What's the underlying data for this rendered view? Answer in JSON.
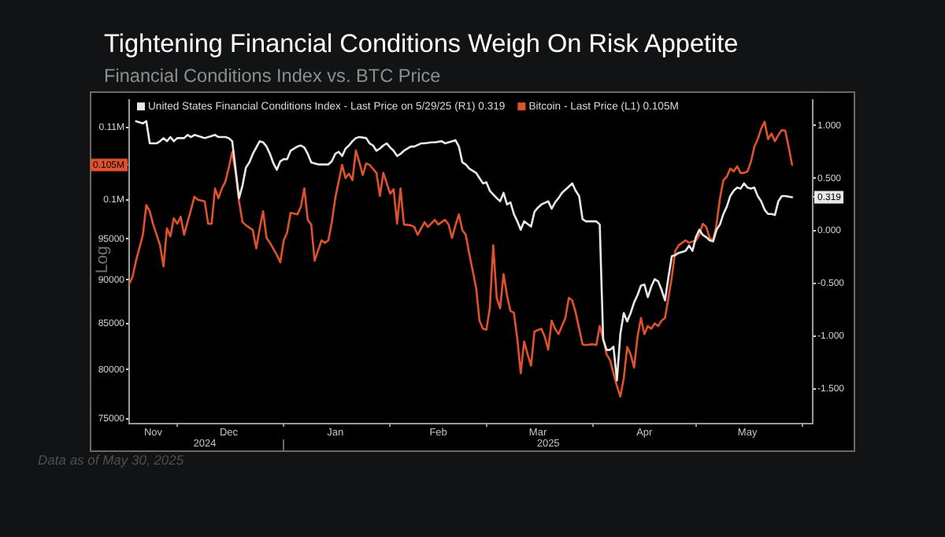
{
  "chart_data": {
    "type": "line",
    "title": "Tightening Financial Conditions Weigh On Risk Appetite",
    "subtitle": "Financial Conditions Index vs. BTC Price",
    "ylabel": "Log",
    "annotations": [
      "Data as of May 30, 2025"
    ],
    "xlim": [
      "2024-11-17",
      "2025-06-04"
    ],
    "xticks": [
      {
        "value": "2024-11-24",
        "label": "Nov"
      },
      {
        "value": "2024-12-01",
        "label": null
      },
      {
        "value": "2024-12-16",
        "label": "Dec"
      },
      {
        "value": "2025-01-01",
        "label": null
      },
      {
        "value": "2025-01-16",
        "label": "Jan"
      },
      {
        "value": "2025-02-01",
        "label": null
      },
      {
        "value": "2025-02-15",
        "label": "Feb"
      },
      {
        "value": "2025-03-01",
        "label": null
      },
      {
        "value": "2025-03-16",
        "label": "Mar"
      },
      {
        "value": "2025-04-01",
        "label": null
      },
      {
        "value": "2025-04-16",
        "label": "Apr"
      },
      {
        "value": "2025-05-01",
        "label": null
      },
      {
        "value": "2025-05-16",
        "label": "May"
      },
      {
        "value": "2025-06-01",
        "label": null
      }
    ],
    "x2lim": [
      "2024-11-17",
      "2025-06-04"
    ],
    "x2ticks": [
      {
        "value": "2024-12-09",
        "label": "2024"
      },
      {
        "value": "2025-01-01",
        "label": null
      },
      {
        "value": "2025-03-19",
        "label": "2025"
      }
    ],
    "ylim": [
      74500,
      114000
    ],
    "yticks": [
      {
        "value": 110000,
        "label": "0.11M"
      },
      {
        "value": 104700,
        "label": "0.105M"
      },
      {
        "value": 100000,
        "label": "0.1M"
      },
      95000,
      90000,
      85000,
      80000,
      75000
    ],
    "y2lim": [
      -1.83,
      1.24
    ],
    "y2ticks": [
      {
        "value": 1,
        "label": "1.000"
      },
      {
        "value": 0.5,
        "label": "0.500"
      },
      0.319,
      {
        "value": 0,
        "label": "0.000"
      },
      {
        "value": -0.5,
        "label": "-0.500"
      },
      {
        "value": -1,
        "label": "-1.000"
      },
      {
        "value": -1.5,
        "label": "-1.500"
      }
    ],
    "log": "y",
    "legend": "top left",
    "series": [
      {
        "name": "United States Financial Conditions Index - Last Price on 5/29/25 (R1) 0.319",
        "color": "#e8e8e8",
        "axis": "y2",
        "x": [
          "2024-11-19",
          "2024-11-21",
          "2024-11-22",
          "2024-11-23",
          "2024-11-25",
          "2024-11-26",
          "2024-11-27",
          "2024-11-28",
          "2024-11-29",
          "2024-11-30",
          "2024-12-01",
          "2024-12-03",
          "2024-12-04",
          "2024-12-05",
          "2024-12-06",
          "2024-12-08",
          "2024-12-09",
          "2024-12-11",
          "2024-12-12",
          "2024-12-13",
          "2024-12-15",
          "2024-12-16",
          "2024-12-17",
          "2024-12-19",
          "2024-12-20",
          "2024-12-21",
          "2024-12-22",
          "2024-12-23",
          "2024-12-24",
          "2024-12-25",
          "2024-12-26",
          "2024-12-27",
          "2024-12-28",
          "2024-12-29",
          "2024-12-30",
          "2024-12-31",
          "2025-01-01",
          "2025-01-02",
          "2025-01-03",
          "2025-01-05",
          "2025-01-06",
          "2025-01-07",
          "2025-01-08",
          "2025-01-09",
          "2025-01-11",
          "2025-01-12",
          "2025-01-14",
          "2025-01-15",
          "2025-01-16",
          "2025-01-17",
          "2025-01-18",
          "2025-01-19",
          "2025-01-20",
          "2025-01-21",
          "2025-01-22",
          "2025-01-23",
          "2025-01-25",
          "2025-01-26",
          "2025-01-27",
          "2025-01-28",
          "2025-01-29",
          "2025-01-30",
          "2025-01-31",
          "2025-02-01",
          "2025-02-02",
          "2025-02-03",
          "2025-02-04",
          "2025-02-05",
          "2025-02-07",
          "2025-02-08",
          "2025-02-10",
          "2025-02-11",
          "2025-02-13",
          "2025-02-14",
          "2025-02-16",
          "2025-02-17",
          "2025-02-19",
          "2025-02-20",
          "2025-02-21",
          "2025-02-22",
          "2025-02-23",
          "2025-02-24",
          "2025-02-26",
          "2025-02-27",
          "2025-02-28",
          "2025-03-01",
          "2025-03-02",
          "2025-03-04",
          "2025-03-05",
          "2025-03-06",
          "2025-03-07",
          "2025-03-08",
          "2025-03-09",
          "2025-03-10",
          "2025-03-11",
          "2025-03-12",
          "2025-03-14",
          "2025-03-15",
          "2025-03-16",
          "2025-03-17",
          "2025-03-19",
          "2025-03-20",
          "2025-03-21",
          "2025-03-22",
          "2025-03-23",
          "2025-03-25",
          "2025-03-26",
          "2025-03-27",
          "2025-03-28",
          "2025-03-29",
          "2025-03-30",
          "2025-04-01",
          "2025-04-02",
          "2025-04-03",
          "2025-04-04",
          "2025-04-05",
          "2025-04-06",
          "2025-04-07",
          "2025-04-08",
          "2025-04-09",
          "2025-04-10",
          "2025-04-11",
          "2025-04-12",
          "2025-04-13",
          "2025-04-14",
          "2025-04-15",
          "2025-04-16",
          "2025-04-17",
          "2025-04-18",
          "2025-04-19",
          "2025-04-20",
          "2025-04-21",
          "2025-04-22",
          "2025-04-23",
          "2025-04-24",
          "2025-04-25",
          "2025-04-26",
          "2025-04-27",
          "2025-04-28",
          "2025-04-29",
          "2025-04-30",
          "2025-05-01",
          "2025-05-02",
          "2025-05-03",
          "2025-05-04",
          "2025-05-05",
          "2025-05-06",
          "2025-05-07",
          "2025-05-08",
          "2025-05-09",
          "2025-05-10",
          "2025-05-11",
          "2025-05-12",
          "2025-05-13",
          "2025-05-14",
          "2025-05-15",
          "2025-05-16",
          "2025-05-17",
          "2025-05-18",
          "2025-05-19",
          "2025-05-20",
          "2025-05-21",
          "2025-05-22",
          "2025-05-23",
          "2025-05-24",
          "2025-05-25",
          "2025-05-26",
          "2025-05-27",
          "2025-05-29"
        ],
        "values": [
          1.04,
          1.02,
          1.04,
          0.83,
          0.83,
          0.85,
          0.88,
          0.85,
          0.89,
          0.85,
          0.88,
          0.88,
          0.91,
          0.89,
          0.91,
          0.89,
          0.88,
          0.9,
          0.91,
          0.89,
          0.89,
          0.88,
          0.85,
          0.31,
          0.43,
          0.6,
          0.65,
          0.73,
          0.79,
          0.85,
          0.84,
          0.8,
          0.73,
          0.64,
          0.58,
          0.66,
          0.68,
          0.68,
          0.76,
          0.8,
          0.81,
          0.79,
          0.73,
          0.65,
          0.63,
          0.63,
          0.63,
          0.66,
          0.73,
          0.75,
          0.71,
          0.78,
          0.81,
          0.85,
          0.88,
          0.89,
          0.88,
          0.83,
          0.81,
          0.76,
          0.78,
          0.81,
          0.83,
          0.79,
          0.76,
          0.71,
          0.73,
          0.76,
          0.8,
          0.8,
          0.83,
          0.83,
          0.84,
          0.84,
          0.85,
          0.83,
          0.85,
          0.86,
          0.8,
          0.65,
          0.63,
          0.59,
          0.55,
          0.5,
          0.45,
          0.46,
          0.38,
          0.31,
          0.28,
          0.36,
          0.25,
          0.27,
          0.16,
          0.09,
          0.01,
          0.09,
          0.04,
          0.18,
          0.22,
          0.25,
          0.28,
          0.21,
          0.27,
          0.31,
          0.36,
          0.42,
          0.45,
          0.38,
          0.33,
          0.11,
          0.09,
          0.09,
          0.09,
          0.06,
          -1.03,
          -1.13,
          -1.13,
          -1.1,
          -1.42,
          -0.98,
          -0.78,
          -0.86,
          -0.78,
          -0.68,
          -0.61,
          -0.52,
          -0.51,
          -0.63,
          -0.53,
          -0.46,
          -0.48,
          -0.56,
          -0.66,
          -0.44,
          -0.24,
          -0.23,
          -0.21,
          -0.2,
          -0.19,
          -0.14,
          -0.19,
          -0.06,
          0.01,
          -0.04,
          -0.06,
          -0.09,
          -0.1,
          0.01,
          0.06,
          0.16,
          0.23,
          0.33,
          0.38,
          0.41,
          0.4,
          0.45,
          0.41,
          0.4,
          0.41,
          0.33,
          0.28,
          0.2,
          0.16,
          0.16,
          0.15,
          0.28,
          0.33,
          0.33,
          0.319
        ]
      },
      {
        "name": "Bitcoin - Last Price (L1) 0.105M",
        "color": "#e0522e",
        "x": [
          "2024-11-17",
          "2024-11-18",
          "2024-11-19",
          "2024-11-21",
          "2024-11-22",
          "2024-11-23",
          "2024-11-24",
          "2024-11-26",
          "2024-11-27",
          "2024-11-28",
          "2024-11-29",
          "2024-11-30",
          "2024-12-01",
          "2024-12-02",
          "2024-12-03",
          "2024-12-04",
          "2024-12-05",
          "2024-12-06",
          "2024-12-07",
          "2024-12-09",
          "2024-12-10",
          "2024-12-11",
          "2024-12-12",
          "2024-12-13",
          "2024-12-14",
          "2024-12-15",
          "2024-12-16",
          "2024-12-17",
          "2024-12-18",
          "2024-12-19",
          "2024-12-20",
          "2024-12-21",
          "2024-12-23",
          "2024-12-24",
          "2024-12-25",
          "2024-12-26",
          "2024-12-27",
          "2024-12-28",
          "2024-12-30",
          "2024-12-31",
          "2025-01-01",
          "2025-01-02",
          "2025-01-03",
          "2025-01-05",
          "2025-01-06",
          "2025-01-07",
          "2025-01-08",
          "2025-01-09",
          "2025-01-10",
          "2025-01-12",
          "2025-01-13",
          "2025-01-14",
          "2025-01-15",
          "2025-01-16",
          "2025-01-18",
          "2025-01-19",
          "2025-01-20",
          "2025-01-21",
          "2025-01-22",
          "2025-01-23",
          "2025-01-24",
          "2025-01-25",
          "2025-01-26",
          "2025-01-28",
          "2025-01-29",
          "2025-01-30",
          "2025-01-31",
          "2025-02-01",
          "2025-02-02",
          "2025-02-03",
          "2025-02-04",
          "2025-02-05",
          "2025-02-07",
          "2025-02-08",
          "2025-02-09",
          "2025-02-11",
          "2025-02-12",
          "2025-02-14",
          "2025-02-15",
          "2025-02-17",
          "2025-02-18",
          "2025-02-19",
          "2025-02-20",
          "2025-02-21",
          "2025-02-22",
          "2025-02-23",
          "2025-02-24",
          "2025-02-26",
          "2025-02-27",
          "2025-02-28",
          "2025-03-01",
          "2025-03-02",
          "2025-03-03",
          "2025-03-04",
          "2025-03-05",
          "2025-03-06",
          "2025-03-07",
          "2025-03-08",
          "2025-03-09",
          "2025-03-10",
          "2025-03-11",
          "2025-03-12",
          "2025-03-13",
          "2025-03-14",
          "2025-03-15",
          "2025-03-17",
          "2025-03-18",
          "2025-03-19",
          "2025-03-20",
          "2025-03-21",
          "2025-03-22",
          "2025-03-23",
          "2025-03-24",
          "2025-03-25",
          "2025-03-26",
          "2025-03-27",
          "2025-03-29",
          "2025-03-30",
          "2025-04-01",
          "2025-04-02",
          "2025-04-03",
          "2025-04-04",
          "2025-04-05",
          "2025-04-06",
          "2025-04-07",
          "2025-04-08",
          "2025-04-09",
          "2025-04-10",
          "2025-04-11",
          "2025-04-12",
          "2025-04-13",
          "2025-04-14",
          "2025-04-15",
          "2025-04-16",
          "2025-04-17",
          "2025-04-18",
          "2025-04-19",
          "2025-04-20",
          "2025-04-21",
          "2025-04-22",
          "2025-04-23",
          "2025-04-24",
          "2025-04-25",
          "2025-04-26",
          "2025-04-27",
          "2025-04-28",
          "2025-04-29",
          "2025-05-01",
          "2025-05-02",
          "2025-05-03",
          "2025-05-04",
          "2025-05-05",
          "2025-05-06",
          "2025-05-07",
          "2025-05-08",
          "2025-05-09",
          "2025-05-10",
          "2025-05-11",
          "2025-05-12",
          "2025-05-13",
          "2025-05-14",
          "2025-05-15",
          "2025-05-16",
          "2025-05-17",
          "2025-05-18",
          "2025-05-19",
          "2025-05-20",
          "2025-05-21",
          "2025-05-22",
          "2025-05-23",
          "2025-05-24",
          "2025-05-25",
          "2025-05-26",
          "2025-05-27",
          "2025-05-28",
          "2025-05-29"
        ],
        "values": [
          89500,
          90400,
          92300,
          95500,
          99300,
          98500,
          96800,
          94200,
          91600,
          96300,
          95300,
          97600,
          96900,
          97800,
          95500,
          97100,
          98700,
          100400,
          100000,
          99800,
          96900,
          96900,
          101500,
          100200,
          101500,
          102400,
          104300,
          106500,
          103600,
          99800,
          97100,
          96700,
          96100,
          93800,
          96300,
          98500,
          95100,
          94500,
          93000,
          92100,
          94800,
          95800,
          98300,
          98100,
          99100,
          101500,
          97400,
          96800,
          92300,
          94800,
          94500,
          94800,
          97100,
          100200,
          104700,
          102900,
          103500,
          102600,
          106700,
          105100,
          103300,
          104900,
          104700,
          103600,
          100500,
          103600,
          102200,
          100800,
          101400,
          96900,
          101500,
          96800,
          96700,
          96500,
          95500,
          97100,
          96500,
          97400,
          96800,
          97400,
          96800,
          95100,
          96700,
          98100,
          96100,
          95500,
          93200,
          89100,
          85300,
          84400,
          84300,
          86700,
          94200,
          87900,
          86700,
          90700,
          88200,
          86400,
          86200,
          83300,
          79600,
          83000,
          81600,
          80400,
          84100,
          84400,
          83500,
          82100,
          85300,
          84400,
          83800,
          84700,
          85600,
          87900,
          87600,
          86200,
          82700,
          82600,
          82700,
          82600,
          84700,
          83300,
          81600,
          81000,
          79600,
          78300,
          77200,
          79100,
          82400,
          81600,
          80200,
          83500,
          85600,
          83800,
          84700,
          84400,
          85000,
          84700,
          85300,
          85600,
          87900,
          90400,
          93500,
          94200,
          94500,
          94800,
          94500,
          94800,
          95500,
          96900,
          96500,
          95100,
          94800,
          96800,
          100200,
          102600,
          103100,
          104200,
          103800,
          104500,
          103600,
          103600,
          103800,
          105100,
          107200,
          108300,
          109800,
          110800,
          108300,
          109100,
          108000,
          108900,
          109600,
          109500,
          107200,
          104700
        ]
      }
    ]
  }
}
